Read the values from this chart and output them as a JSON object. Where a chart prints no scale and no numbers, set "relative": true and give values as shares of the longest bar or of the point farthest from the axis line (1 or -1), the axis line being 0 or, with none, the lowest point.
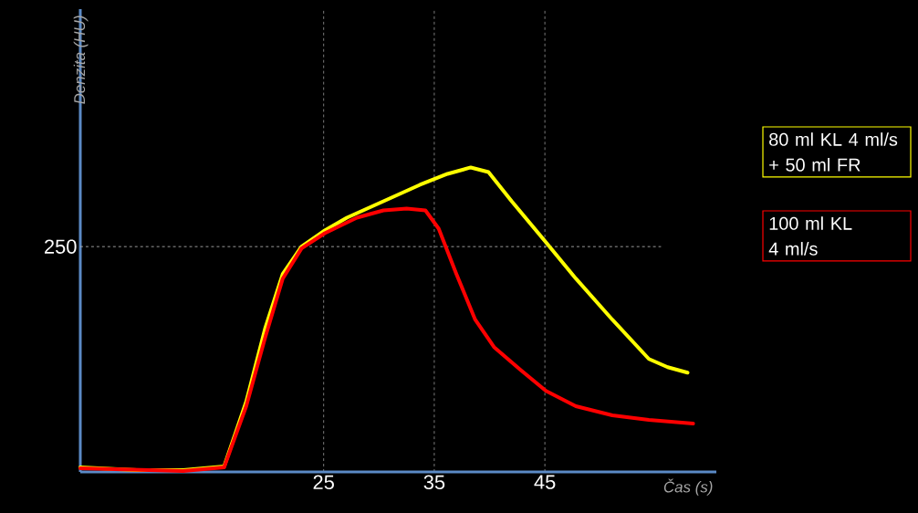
{
  "chart_data": {
    "type": "line",
    "relative": true,
    "xlabel": "Čas (s)",
    "ylabel": "Denzita (HU)",
    "xlim": [
      3,
      60.5
    ],
    "xticks": [
      25,
      35,
      45
    ],
    "grid": "x",
    "legend": "right",
    "line_style": "solid",
    "marker": "none",
    "ref_lines": [
      {
        "axis": "y",
        "value": 0.74,
        "color": "#bfbfbf",
        "line_style": "dashed"
      }
    ],
    "annotations": [
      "250"
    ],
    "series": [
      {
        "name": "80 ml KL 4 ml/s + 50 ml FR",
        "color": "#ffff00",
        "x": [
          3.0,
          8.1,
          12.3,
          16.0,
          18.0,
          19.7,
          21.3,
          23.0,
          25.1,
          27.1,
          30.4,
          33.7,
          36.2,
          38.3,
          39.9,
          42.0,
          45.1,
          47.8,
          51.1,
          54.4,
          56.1,
          57.9
        ],
        "values": [
          0.015,
          0.006,
          0.006,
          0.018,
          0.231,
          0.47,
          0.65,
          0.74,
          0.793,
          0.835,
          0.889,
          0.943,
          0.979,
          1.0,
          0.985,
          0.889,
          0.754,
          0.635,
          0.5,
          0.371,
          0.344,
          0.326
        ]
      },
      {
        "name": "100 ml KL 4 ml/s",
        "color": "#ff0000",
        "x": [
          3.0,
          12.3,
          16.0,
          18.0,
          19.7,
          21.3,
          23.0,
          25.1,
          28.0,
          30.4,
          32.5,
          34.2,
          35.4,
          37.0,
          38.7,
          40.4,
          42.8,
          45.1,
          47.8,
          51.1,
          54.4,
          58.4
        ],
        "values": [
          0.012,
          0.003,
          0.015,
          0.216,
          0.44,
          0.635,
          0.734,
          0.784,
          0.835,
          0.859,
          0.865,
          0.859,
          0.799,
          0.65,
          0.5,
          0.41,
          0.335,
          0.266,
          0.216,
          0.186,
          0.171,
          0.159
        ]
      }
    ]
  }
}
